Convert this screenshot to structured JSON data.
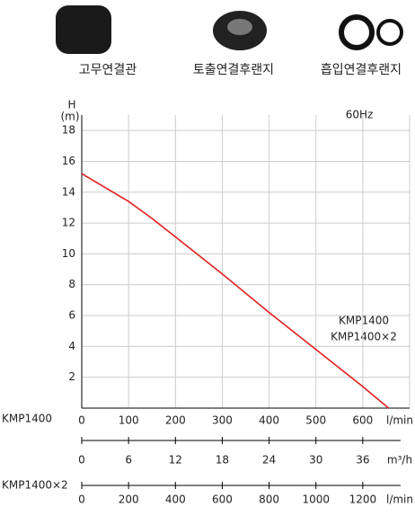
{
  "accessories": [
    {
      "label": "고무연결관"
    },
    {
      "label": "토출연결후랜지"
    },
    {
      "label": "흡입연결후랜지"
    }
  ],
  "chart_data": {
    "type": "line",
    "y_label": "H",
    "y_unit": "(m)",
    "x_unit": "l/min",
    "annotations": [
      "60Hz",
      "KMP1400",
      "KMP1400×2"
    ],
    "x": [
      0,
      100,
      150,
      200,
      300,
      400,
      500,
      600,
      655
    ],
    "series": [
      {
        "name": "KMP1400",
        "color": "#e02020",
        "values": [
          15.2,
          13.4,
          12.3,
          11.1,
          8.7,
          6.2,
          3.8,
          1.4,
          0
        ]
      }
    ],
    "xlim": [
      0,
      700
    ],
    "xticks": [
      0,
      100,
      200,
      300,
      400,
      500,
      600
    ],
    "ylim": [
      0,
      19
    ],
    "yticks": [
      2,
      4,
      6,
      8,
      10,
      12,
      14,
      16,
      18
    ],
    "grid": true,
    "secondary_axes": [
      {
        "name": "KMP1400",
        "unit": "m³/h",
        "xlim": [
          0,
          42
        ],
        "ticks": [
          0,
          6,
          12,
          18,
          24,
          30,
          36
        ]
      },
      {
        "name": "KMP1400×2",
        "unit": "l/min",
        "xlim": [
          0,
          1400
        ],
        "ticks": [
          0,
          200,
          400,
          600,
          800,
          1000,
          1200
        ]
      }
    ]
  }
}
